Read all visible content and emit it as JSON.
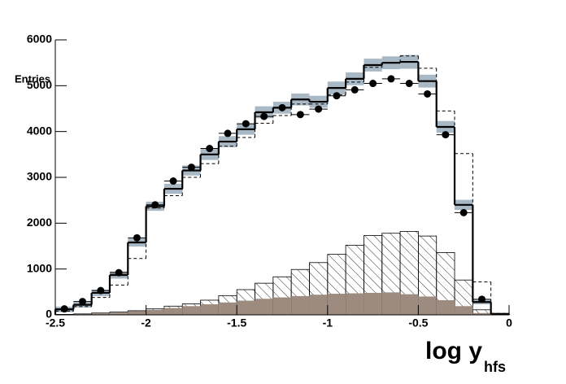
{
  "chart_data": {
    "type": "histogram",
    "xlabel": "log y",
    "xlabel_sub": "hfs",
    "ylabel": "Entries",
    "bins": [
      -2.5,
      -2.4,
      -2.3,
      -2.2,
      -2.1,
      -2.0,
      -1.9,
      -1.8,
      -1.7,
      -1.6,
      -1.5,
      -1.4,
      -1.3,
      -1.2,
      -1.1,
      -1.0,
      -0.9,
      -0.8,
      -0.7,
      -0.6,
      -0.5,
      -0.4,
      -0.3,
      -0.2,
      -0.1,
      0
    ],
    "xlim": [
      -2.5,
      0
    ],
    "xticks": [
      -2.5,
      -2,
      -1.5,
      -1,
      -0.5,
      0
    ],
    "ylim": [
      0,
      6000
    ],
    "yticks": [
      0,
      1000,
      2000,
      3000,
      4000,
      5000,
      6000
    ],
    "series": [
      {
        "style": "hatched",
        "color": "#000000",
        "values": [
          10,
          20,
          40,
          60,
          90,
          130,
          190,
          240,
          320,
          420,
          550,
          690,
          830,
          990,
          1140,
          1320,
          1520,
          1730,
          1780,
          1820,
          1720,
          1360,
          760,
          110,
          10
        ]
      },
      {
        "style": "filled",
        "color": "#9c8b7e",
        "values": [
          5,
          10,
          30,
          50,
          80,
          110,
          150,
          190,
          230,
          270,
          310,
          350,
          380,
          410,
          440,
          460,
          470,
          480,
          490,
          450,
          400,
          320,
          190,
          40,
          5
        ]
      },
      {
        "style": "dashed",
        "color": "#000000",
        "values": [
          80,
          180,
          380,
          650,
          1230,
          2330,
          2600,
          3000,
          3300,
          3680,
          3870,
          4180,
          4350,
          4600,
          4600,
          4800,
          5080,
          5400,
          5500,
          5650,
          5380,
          4450,
          3520,
          720,
          30
        ]
      },
      {
        "style": "solid",
        "color": "#000000",
        "band_color": "#a9b8c5",
        "values": [
          120,
          220,
          480,
          870,
          1580,
          2370,
          2750,
          3150,
          3500,
          3780,
          4050,
          4420,
          4520,
          4700,
          4650,
          4950,
          5150,
          5450,
          5500,
          5520,
          5100,
          4100,
          2400,
          280,
          20
        ],
        "errors": [
          60,
          60,
          70,
          80,
          90,
          100,
          110,
          110,
          120,
          120,
          120,
          130,
          130,
          130,
          130,
          140,
          140,
          140,
          140,
          150,
          140,
          130,
          110,
          50,
          20
        ]
      },
      {
        "style": "points",
        "color": "#000000",
        "values": [
          130,
          290,
          530,
          920,
          1680,
          2400,
          2920,
          3220,
          3630,
          3960,
          4170,
          4330,
          4520,
          4370,
          4490,
          4780,
          4910,
          5050,
          5150,
          5050,
          4820,
          3930,
          2230,
          340,
          null
        ]
      }
    ]
  }
}
